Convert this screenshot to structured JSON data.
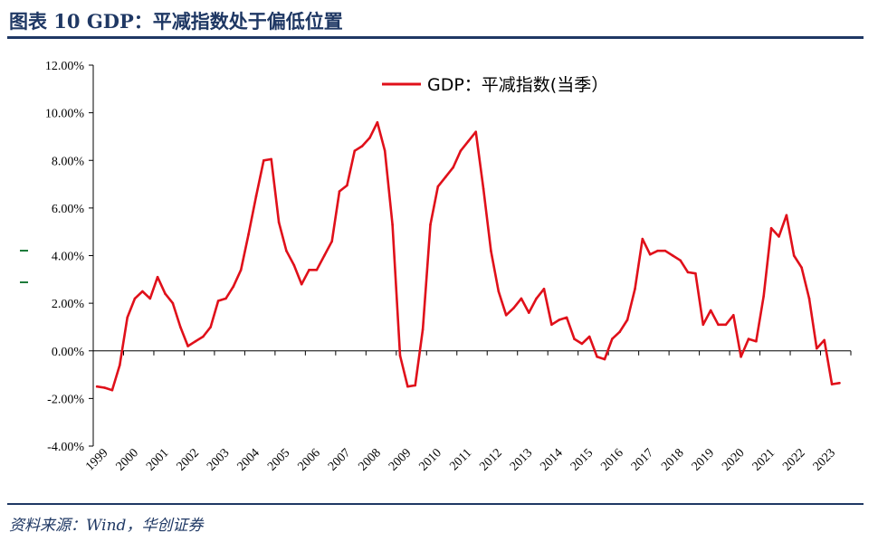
{
  "header": {
    "title": "图表 10   GDP：平减指数处于偏低位置"
  },
  "footer": {
    "source": "资料来源：Wind，华创证券"
  },
  "colors": {
    "title": "#1f3864",
    "series": "#e0101a",
    "axis": "#000000"
  },
  "chart_data": {
    "type": "line",
    "title": "",
    "xlabel": "",
    "ylabel": "",
    "ylim": [
      -4,
      12
    ],
    "y_ticks": [
      "12.00%",
      "10.00%",
      "8.00%",
      "6.00%",
      "4.00%",
      "2.00%",
      "0.00%",
      "-2.00%",
      "-4.00%"
    ],
    "y_tick_values": [
      12,
      10,
      8,
      6,
      4,
      2,
      0,
      -2,
      -4
    ],
    "x_ticks": [
      "1999",
      "2000",
      "2001",
      "2002",
      "2003",
      "2004",
      "2005",
      "2006",
      "2007",
      "2008",
      "2009",
      "2010",
      "2011",
      "2012",
      "2013",
      "2014",
      "2015",
      "2016",
      "2017",
      "2018",
      "2019",
      "2020",
      "2021",
      "2022",
      "2023"
    ],
    "legend_position": "top-right",
    "grid": false,
    "series": [
      {
        "name": "GDP：平减指数(当季）",
        "start": "1999-Q1",
        "frequency": "quarterly",
        "values": [
          -1.5,
          -1.55,
          -1.65,
          -0.6,
          1.4,
          2.2,
          2.5,
          2.2,
          3.1,
          2.4,
          2.0,
          1.0,
          0.2,
          0.4,
          0.6,
          1.0,
          2.1,
          2.2,
          2.7,
          3.4,
          4.9,
          6.5,
          8.0,
          8.05,
          5.4,
          4.2,
          3.6,
          2.8,
          3.4,
          3.4,
          4.0,
          4.6,
          6.7,
          6.95,
          8.4,
          8.6,
          8.95,
          9.6,
          8.4,
          5.3,
          -0.2,
          -1.5,
          -1.45,
          0.9,
          5.3,
          6.9,
          7.3,
          7.7,
          8.4,
          8.8,
          9.2,
          6.8,
          4.2,
          2.5,
          1.5,
          1.8,
          2.2,
          1.6,
          2.2,
          2.6,
          1.1,
          1.3,
          1.4,
          0.5,
          0.3,
          0.6,
          -0.25,
          -0.35,
          0.5,
          0.8,
          1.3,
          2.6,
          4.7,
          4.05,
          4.2,
          4.2,
          4.0,
          3.8,
          3.3,
          3.25,
          1.1,
          1.7,
          1.1,
          1.1,
          1.5,
          -0.25,
          0.5,
          0.4,
          2.3,
          5.15,
          4.8,
          5.7,
          4.0,
          3.5,
          2.2,
          0.1,
          0.45,
          -1.4,
          -1.35
        ]
      }
    ]
  }
}
